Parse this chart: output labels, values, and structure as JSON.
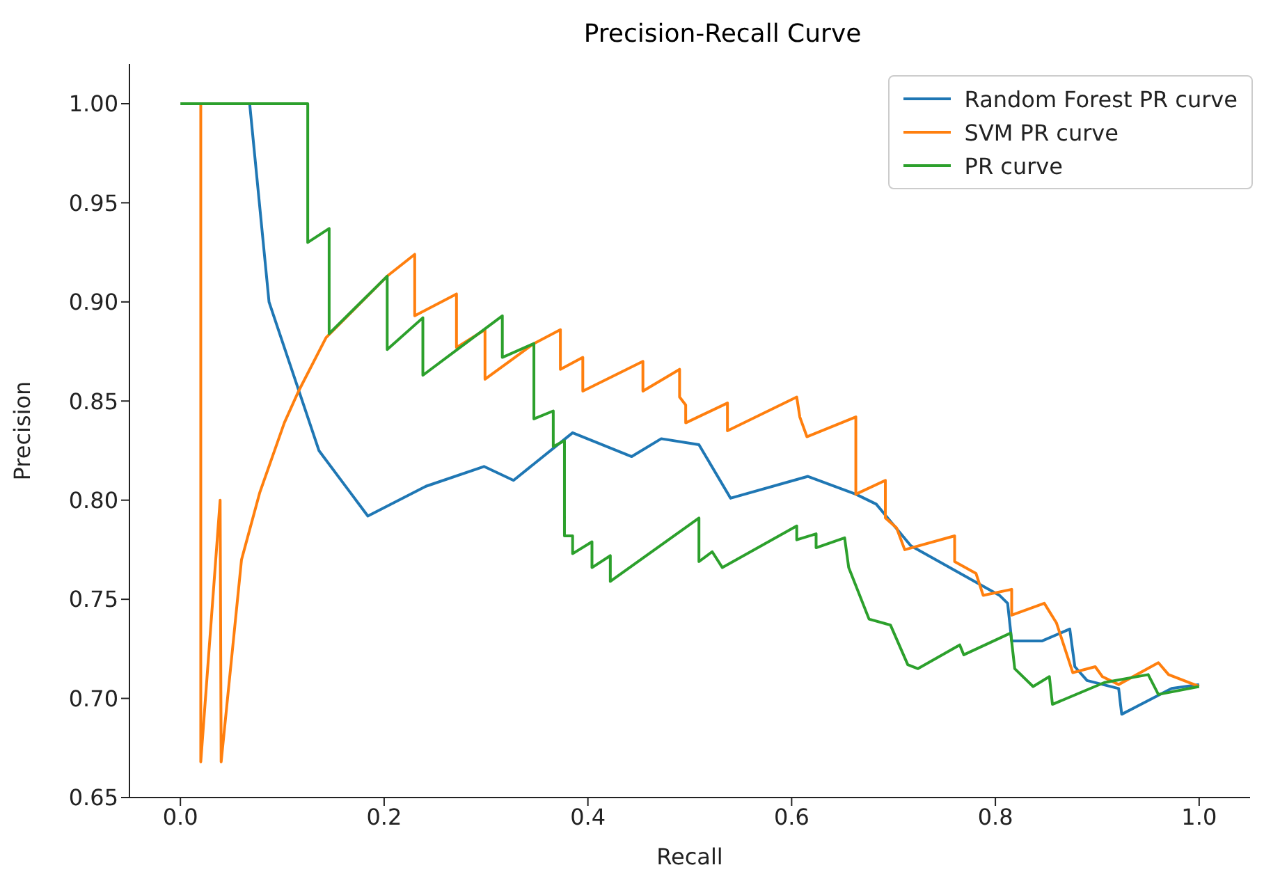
{
  "chart_data": {
    "type": "line",
    "title": "Precision-Recall Curve",
    "xlabel": "Recall",
    "ylabel": "Precision",
    "xlim": [
      -0.05,
      1.05
    ],
    "xticks": [
      {
        "value": 0,
        "label": "0.0"
      },
      0.2,
      0.4,
      0.6,
      0.8,
      {
        "value": 1,
        "label": "1.0"
      }
    ],
    "ylim": [
      0.65,
      1.02
    ],
    "yticks": [
      0.65,
      {
        "value": 0.7,
        "label": "0.70"
      },
      0.75,
      {
        "value": 0.8,
        "label": "0.80"
      },
      0.85,
      {
        "value": 0.9,
        "label": "0.90"
      },
      0.95,
      {
        "value": 1,
        "label": "1.00"
      }
    ],
    "grid": false,
    "legend": "top right",
    "marker": "none",
    "line_style": "solid",
    "series": [
      {
        "name": "Random Forest PR curve",
        "color": "#1f77b4",
        "x": [
          0.068,
          0.087,
          0.136,
          0.184,
          0.241,
          0.298,
          0.327,
          0.385,
          0.443,
          0.472,
          0.509,
          0.54,
          0.616,
          0.663,
          0.683,
          0.717,
          0.804,
          0.812,
          0.816,
          0.846,
          0.873,
          0.878,
          0.89,
          0.921,
          0.924,
          0.973,
          1.0
        ],
        "values": [
          1.0,
          0.9,
          0.825,
          0.792,
          0.807,
          0.817,
          0.81,
          0.834,
          0.822,
          0.831,
          0.828,
          0.801,
          0.812,
          0.803,
          0.798,
          0.777,
          0.752,
          0.748,
          0.729,
          0.729,
          0.735,
          0.716,
          0.709,
          0.705,
          0.692,
          0.705,
          0.707
        ]
      },
      {
        "name": "SVM PR curve",
        "color": "#ff7f0e",
        "x": [
          0.02,
          0.02,
          0.039,
          0.04,
          0.06,
          0.078,
          0.102,
          0.116,
          0.143,
          0.203,
          0.23,
          0.23,
          0.271,
          0.271,
          0.299,
          0.299,
          0.347,
          0.373,
          0.373,
          0.395,
          0.395,
          0.454,
          0.454,
          0.49,
          0.49,
          0.496,
          0.496,
          0.537,
          0.537,
          0.605,
          0.608,
          0.615,
          0.663,
          0.663,
          0.692,
          0.692,
          0.703,
          0.711,
          0.76,
          0.76,
          0.781,
          0.788,
          0.816,
          0.816,
          0.848,
          0.86,
          0.876,
          0.898,
          0.905,
          0.921,
          0.96,
          0.97,
          1.0
        ],
        "values": [
          1.0,
          0.668,
          0.8,
          0.668,
          0.77,
          0.804,
          0.839,
          0.855,
          0.882,
          0.913,
          0.924,
          0.893,
          0.904,
          0.877,
          0.886,
          0.861,
          0.879,
          0.886,
          0.866,
          0.872,
          0.855,
          0.87,
          0.855,
          0.866,
          0.852,
          0.848,
          0.839,
          0.849,
          0.835,
          0.852,
          0.842,
          0.832,
          0.842,
          0.803,
          0.81,
          0.791,
          0.786,
          0.775,
          0.782,
          0.769,
          0.763,
          0.752,
          0.755,
          0.742,
          0.748,
          0.738,
          0.713,
          0.716,
          0.711,
          0.707,
          0.718,
          0.712,
          0.706
        ]
      },
      {
        "name": "PR curve",
        "color": "#2ca02c",
        "x": [
          0,
          0.125,
          0.125,
          0.146,
          0.146,
          0.203,
          0.203,
          0.238,
          0.238,
          0.316,
          0.316,
          0.347,
          0.347,
          0.366,
          0.366,
          0.377,
          0.377,
          0.385,
          0.385,
          0.404,
          0.404,
          0.422,
          0.422,
          0.509,
          0.509,
          0.522,
          0.532,
          0.605,
          0.605,
          0.624,
          0.624,
          0.652,
          0.656,
          0.676,
          0.697,
          0.714,
          0.724,
          0.765,
          0.769,
          0.815,
          0.819,
          0.837,
          0.853,
          0.856,
          0.907,
          0.95,
          0.96,
          1.0
        ],
        "values": [
          1.0,
          1.0,
          0.93,
          0.937,
          0.884,
          0.913,
          0.876,
          0.892,
          0.863,
          0.893,
          0.872,
          0.879,
          0.841,
          0.845,
          0.827,
          0.83,
          0.782,
          0.782,
          0.773,
          0.779,
          0.766,
          0.772,
          0.759,
          0.791,
          0.769,
          0.774,
          0.766,
          0.787,
          0.78,
          0.783,
          0.776,
          0.781,
          0.766,
          0.74,
          0.737,
          0.717,
          0.715,
          0.727,
          0.722,
          0.733,
          0.715,
          0.706,
          0.711,
          0.697,
          0.708,
          0.712,
          0.702,
          0.706
        ]
      }
    ]
  }
}
